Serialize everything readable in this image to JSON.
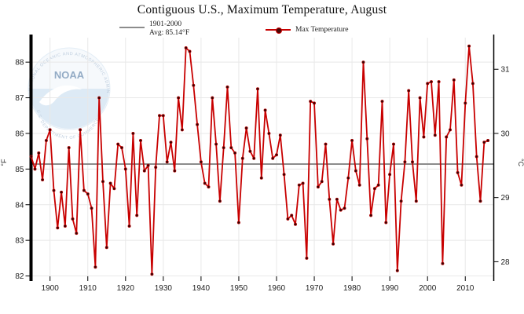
{
  "title": "Contiguous U.S., Maximum Temperature, August",
  "legend": {
    "avg_line1": "1901-2000",
    "avg_line2": "Avg: 85.14°F",
    "series_label": "Max Temperature"
  },
  "watermark": {
    "ring_top": "NATIONAL OCEANIC AND ATMOSPHERIC ADMINISTRATION",
    "ring_bottom": "U.S. DEPARTMENT OF COMMERCE",
    "word": "NOAA"
  },
  "colors": {
    "series": "#c80000",
    "point_fill": "#330404",
    "avg_line": "#8c8c8c",
    "grid": "#e8e8e8",
    "axis": "#000000"
  },
  "chart_data": {
    "type": "line",
    "title": "Contiguous U.S., Maximum Temperature, August",
    "x_start": 1895,
    "x_end": 2016,
    "series": [
      {
        "name": "Max Temperature",
        "values": [
          85.35,
          85.0,
          85.45,
          84.7,
          85.8,
          86.1,
          84.4,
          83.35,
          84.35,
          83.4,
          85.6,
          83.6,
          83.2,
          86.1,
          84.4,
          84.3,
          83.9,
          82.25,
          87.0,
          84.65,
          82.8,
          84.6,
          84.45,
          85.7,
          85.6,
          85.0,
          83.4,
          86.0,
          83.7,
          85.8,
          84.95,
          85.1,
          82.05,
          85.05,
          86.5,
          86.5,
          85.2,
          85.75,
          84.95,
          87.0,
          86.1,
          88.4,
          88.3,
          87.35,
          86.25,
          85.2,
          84.6,
          84.5,
          87.0,
          85.7,
          84.1,
          85.6,
          87.3,
          85.6,
          85.45,
          83.5,
          85.3,
          86.15,
          85.5,
          85.3,
          87.25,
          84.75,
          86.65,
          86.0,
          85.3,
          85.4,
          85.95,
          84.85,
          83.6,
          83.7,
          83.45,
          84.55,
          84.6,
          82.5,
          86.9,
          86.85,
          84.5,
          84.65,
          85.7,
          84.15,
          82.9,
          84.15,
          83.85,
          83.9,
          84.75,
          85.8,
          84.95,
          84.55,
          88.0,
          85.85,
          83.7,
          84.45,
          84.55,
          86.9,
          83.5,
          84.85,
          85.7,
          82.15,
          84.1,
          85.2,
          87.2,
          85.2,
          84.1,
          87.0,
          85.9,
          87.4,
          87.45,
          85.95,
          87.45,
          82.35,
          85.9,
          86.1,
          87.5,
          84.9,
          84.55,
          86.85,
          88.45,
          87.4,
          85.35,
          84.1,
          85.75,
          85.8
        ]
      }
    ],
    "avg_line": {
      "label": "1901-2000 Avg",
      "value": 85.14
    },
    "y_axis_left": {
      "label": "°F",
      "ticks": [
        82,
        83,
        84,
        85,
        86,
        87,
        88
      ],
      "range": [
        81.99,
        88.53
      ]
    },
    "y_axis_right": {
      "label": "°C",
      "ticks": [
        28,
        29,
        30,
        31
      ]
    },
    "x_axis": {
      "ticks": [
        1900,
        1910,
        1920,
        1930,
        1940,
        1950,
        1960,
        1970,
        1980,
        1990,
        2000,
        2010
      ],
      "range": [
        1894.9,
        2017
      ]
    },
    "grid": true,
    "legend_position": "top"
  }
}
